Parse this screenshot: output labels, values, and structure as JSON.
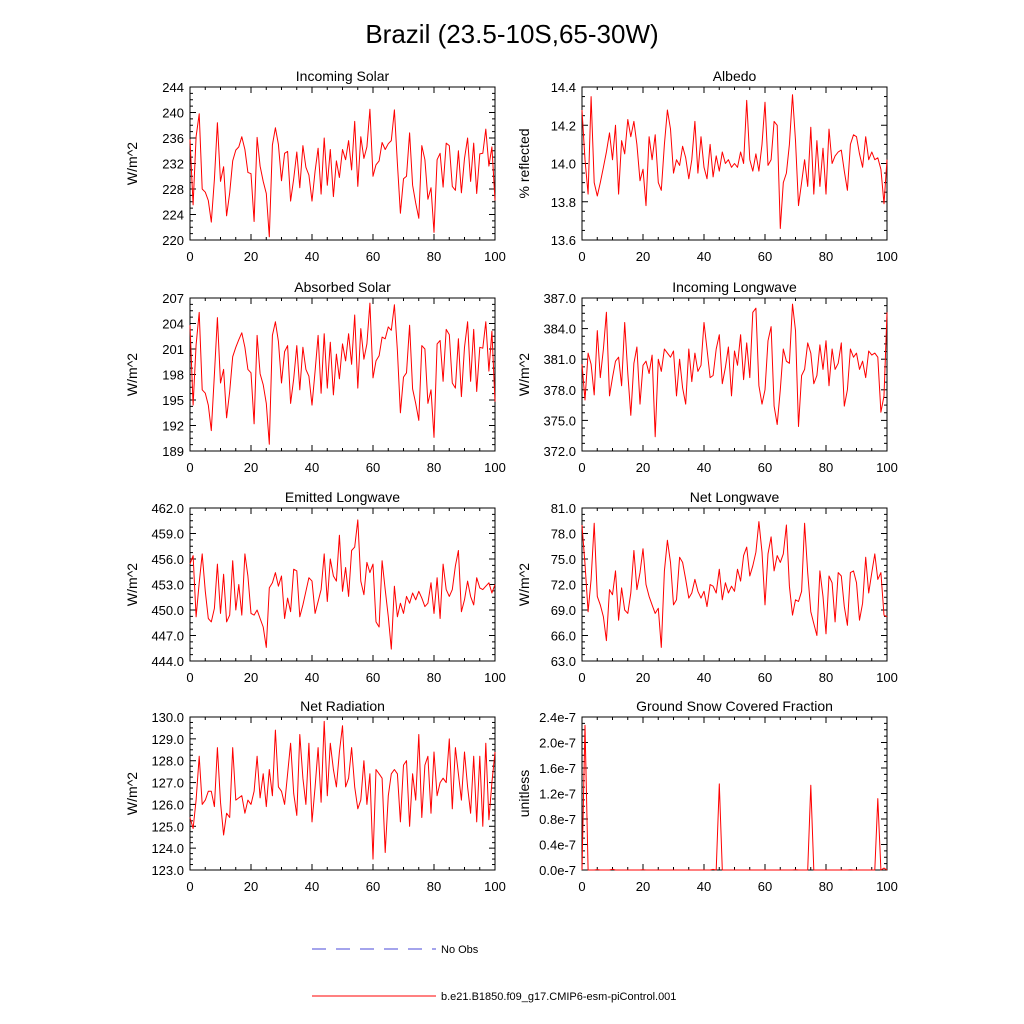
{
  "figure_title": "Brazil (23.5-10S,65-30W)",
  "colors": {
    "model": "#ff0000",
    "obs": "#4a4ad8",
    "axis": "#000000"
  },
  "legend": {
    "obs_label": "No Obs",
    "model_label": "b.e21.B1850.f09_g17.CMIP6-esm-piControl.001"
  },
  "chart_data": [
    {
      "type": "line",
      "title": "Incoming Solar",
      "ylabel": "W/m^2",
      "xlim": [
        0,
        100
      ],
      "ylim": [
        220,
        244
      ],
      "xticks": [
        "0",
        "20",
        "40",
        "60",
        "80",
        "100"
      ],
      "yticks": [
        "220",
        "224",
        "228",
        "232",
        "236",
        "240",
        "244"
      ],
      "grid": false,
      "series": [
        {
          "values": [
            235.8,
            225.5,
            236.2,
            239.8,
            228.0,
            227.5,
            226.2,
            222.8,
            229.5,
            238.4,
            229.2,
            231.5,
            223.8,
            227.4,
            232.4,
            234.1,
            234.6,
            236.2,
            234.2,
            230.6,
            230.4,
            222.9,
            236.1,
            231.6,
            229.2,
            227.3,
            220.5,
            234.9,
            237.6,
            235.0,
            229.3,
            233.6,
            233.9,
            226.1,
            229.6,
            233.8,
            228.2,
            234.8,
            231.4,
            230.2,
            226.1,
            230.8,
            234.4,
            227.2,
            236.0,
            228.6,
            234.2,
            226.8,
            232.4,
            229.8,
            234.2,
            232.6,
            235.6,
            231.0,
            238.6,
            228.4,
            236.2,
            232.8,
            234.6,
            240.5,
            230.0,
            231.8,
            232.4,
            235.3,
            234.2,
            235.1,
            235.6,
            240.4,
            232.0,
            224.2,
            229.6,
            230.0,
            236.8,
            228.6,
            225.8,
            223.4,
            234.8,
            232.6,
            226.4,
            228.2,
            221.2,
            232.6,
            233.6,
            228.3,
            235.2,
            234.8,
            228.4,
            227.8,
            234.0,
            227.4,
            232.8,
            236.0,
            229.2,
            235.2,
            227.3,
            233.5,
            233.6,
            237.4,
            231.6,
            234.6,
            226.2
          ]
        }
      ]
    },
    {
      "type": "line",
      "title": "Albedo",
      "ylabel": "% reflected",
      "xlim": [
        0,
        100
      ],
      "ylim": [
        13.6,
        14.4
      ],
      "xticks": [
        "0",
        "20",
        "40",
        "60",
        "80",
        "100"
      ],
      "yticks": [
        "13.6",
        "13.8",
        "14.0",
        "14.2",
        "14.4"
      ],
      "grid": false,
      "series": [
        {
          "values": [
            14.28,
            14.02,
            13.84,
            14.35,
            13.9,
            13.83,
            13.9,
            13.98,
            14.06,
            14.16,
            14.02,
            14.2,
            13.84,
            14.12,
            14.05,
            14.23,
            14.14,
            14.22,
            14.1,
            13.91,
            13.97,
            13.78,
            14.14,
            14.02,
            14.15,
            13.9,
            13.86,
            14.1,
            14.28,
            14.18,
            13.95,
            14.02,
            13.99,
            14.09,
            14.03,
            13.92,
            14.02,
            14.22,
            13.95,
            14.14,
            13.98,
            13.92,
            14.1,
            13.93,
            14.04,
            13.96,
            14.06,
            14.0,
            14.02,
            13.98,
            14.0,
            13.98,
            14.06,
            14.0,
            14.33,
            14.02,
            13.96,
            14.05,
            13.96,
            14.1,
            14.32,
            13.99,
            14.02,
            14.22,
            14.2,
            13.66,
            13.9,
            13.95,
            14.1,
            14.36,
            14.12,
            13.78,
            13.9,
            14.02,
            13.88,
            14.19,
            13.84,
            14.12,
            13.88,
            14.08,
            13.84,
            14.18,
            14.0,
            14.04,
            14.06,
            14.07,
            13.96,
            13.86,
            14.1,
            14.15,
            14.14,
            14.05,
            13.98,
            14.14,
            14.02,
            14.06,
            14.02,
            14.03,
            13.97,
            13.79,
            14.02
          ]
        }
      ]
    },
    {
      "type": "line",
      "title": "Absorbed Solar",
      "ylabel": "W/m^2",
      "xlim": [
        0,
        100
      ],
      "ylim": [
        189,
        207
      ],
      "xticks": [
        "0",
        "20",
        "40",
        "60",
        "80",
        "100"
      ],
      "yticks": [
        "189",
        "192",
        "195",
        "198",
        "201",
        "204",
        "207"
      ],
      "grid": false,
      "series": [
        {
          "values": [
            203.8,
            194.4,
            201.5,
            205.3,
            196.2,
            195.8,
            194.4,
            191.4,
            198.0,
            204.7,
            197.0,
            198.6,
            192.9,
            196.0,
            200.1,
            201.2,
            202.1,
            202.9,
            201.2,
            198.6,
            198.2,
            192.2,
            202.6,
            198.1,
            196.8,
            194.6,
            189.8,
            202.6,
            204.2,
            201.9,
            197.0,
            200.7,
            201.4,
            194.6,
            197.5,
            201.4,
            196.2,
            201.2,
            198.6,
            197.8,
            194.4,
            198.4,
            202.6,
            195.8,
            202.8,
            196.4,
            201.8,
            195.6,
            200.4,
            197.5,
            201.6,
            199.6,
            202.8,
            199.2,
            205.0,
            196.4,
            203.4,
            199.8,
            201.6,
            206.4,
            197.6,
            199.6,
            200.2,
            202.4,
            202.2,
            203.6,
            203.2,
            206.2,
            200.8,
            193.5,
            197.7,
            198.2,
            203.8,
            196.3,
            194.6,
            192.6,
            201.4,
            201.0,
            194.6,
            196.2,
            190.6,
            201.6,
            202.0,
            197.2,
            203.3,
            202.7,
            197.0,
            196.4,
            202.2,
            195.4,
            201.2,
            204.2,
            197.2,
            203.3,
            196.0,
            201.2,
            201.1,
            204.2,
            198.4,
            203.1,
            194.8
          ]
        }
      ]
    },
    {
      "type": "line",
      "title": "Incoming Longwave",
      "ylabel": "W/m^2",
      "xlim": [
        0,
        100
      ],
      "ylim": [
        372.0,
        387.0
      ],
      "xticks": [
        "0",
        "20",
        "40",
        "60",
        "80",
        "100"
      ],
      "yticks": [
        "372.0",
        "375.0",
        "378.0",
        "381.0",
        "384.0",
        "387.0"
      ],
      "grid": false,
      "series": [
        {
          "values": [
            380.5,
            377.0,
            381.6,
            380.5,
            377.5,
            383.8,
            379.2,
            382.0,
            385.6,
            377.4,
            379.2,
            380.8,
            381.2,
            378.4,
            384.6,
            379.6,
            375.5,
            380.6,
            382.2,
            376.6,
            380.4,
            380.8,
            379.6,
            381.4,
            373.4,
            381.0,
            379.8,
            382.0,
            381.6,
            381.2,
            381.8,
            377.4,
            381.0,
            378.2,
            376.6,
            382.0,
            378.8,
            381.6,
            379.8,
            380.4,
            384.6,
            382.0,
            379.2,
            379.4,
            382.0,
            383.4,
            378.6,
            380.2,
            382.2,
            377.4,
            381.8,
            380.4,
            383.4,
            379.0,
            382.6,
            379.2,
            385.6,
            386.0,
            378.4,
            376.6,
            378.0,
            382.8,
            384.2,
            376.4,
            374.6,
            378.0,
            382.0,
            380.8,
            380.6,
            386.4,
            383.8,
            374.4,
            379.4,
            380.0,
            382.6,
            381.6,
            378.6,
            379.4,
            382.4,
            380.0,
            382.8,
            378.4,
            382.0,
            380.0,
            380.6,
            382.6,
            376.4,
            378.0,
            382.0,
            381.2,
            381.6,
            380.0,
            380.8,
            379.2,
            381.8,
            381.4,
            381.6,
            381.2,
            375.8,
            377.4,
            385.6
          ]
        }
      ]
    },
    {
      "type": "line",
      "title": "Emitted Longwave",
      "ylabel": "W/m^2",
      "xlim": [
        0,
        100
      ],
      "ylim": [
        444.0,
        462.0
      ],
      "xticks": [
        "0",
        "20",
        "40",
        "60",
        "80",
        "100"
      ],
      "yticks": [
        "444.0",
        "447.0",
        "450.0",
        "453.0",
        "456.0",
        "459.0",
        "462.0"
      ],
      "grid": false,
      "series": [
        {
          "values": [
            455.4,
            456.4,
            449.2,
            453.2,
            456.6,
            452.2,
            449.0,
            448.6,
            450.2,
            455.4,
            449.6,
            454.2,
            448.6,
            449.4,
            455.8,
            450.0,
            453.0,
            449.4,
            456.6,
            454.0,
            449.6,
            449.4,
            450.0,
            449.0,
            448.0,
            445.6,
            452.6,
            453.2,
            454.4,
            452.8,
            454.0,
            449.0,
            451.4,
            449.8,
            454.8,
            454.6,
            449.2,
            450.6,
            452.2,
            453.8,
            453.4,
            449.6,
            451.0,
            452.4,
            456.6,
            451.0,
            456.0,
            454.0,
            453.4,
            458.8,
            452.2,
            455.0,
            451.6,
            457.0,
            457.4,
            460.6,
            453.4,
            451.8,
            455.6,
            454.4,
            455.4,
            448.6,
            448.0,
            455.8,
            452.4,
            449.2,
            445.4,
            452.8,
            449.2,
            450.8,
            449.6,
            451.6,
            450.8,
            452.0,
            451.2,
            452.2,
            451.4,
            450.4,
            450.8,
            453.2,
            449.6,
            453.8,
            449.0,
            455.4,
            452.4,
            451.6,
            452.4,
            455.2,
            457.0,
            449.8,
            451.2,
            453.4,
            451.6,
            450.6,
            453.8,
            452.6,
            452.4,
            452.8,
            453.2,
            452.0,
            453.0
          ]
        }
      ]
    },
    {
      "type": "line",
      "title": "Net Longwave",
      "ylabel": "W/m^2",
      "xlim": [
        0,
        100
      ],
      "ylim": [
        63.0,
        81.0
      ],
      "xticks": [
        "0",
        "20",
        "40",
        "60",
        "80",
        "100"
      ],
      "yticks": [
        "63.0",
        "66.0",
        "69.0",
        "72.0",
        "75.0",
        "78.0",
        "81.0"
      ],
      "grid": false,
      "series": [
        {
          "values": [
            79.0,
            74.4,
            68.8,
            72.6,
            79.2,
            70.6,
            69.6,
            68.2,
            65.4,
            71.4,
            70.8,
            73.6,
            67.8,
            71.6,
            69.0,
            68.6,
            71.0,
            76.0,
            71.4,
            73.4,
            76.2,
            72.0,
            70.6,
            69.6,
            68.6,
            69.2,
            64.6,
            73.6,
            77.2,
            74.6,
            69.6,
            70.2,
            75.2,
            74.6,
            72.6,
            70.4,
            71.0,
            72.6,
            71.2,
            70.4,
            71.2,
            69.4,
            72.0,
            71.8,
            71.0,
            73.8,
            70.2,
            72.2,
            71.0,
            71.8,
            71.2,
            73.8,
            72.4,
            75.4,
            76.4,
            73.0,
            74.2,
            75.8,
            79.4,
            75.8,
            69.6,
            75.6,
            77.6,
            73.6,
            75.4,
            74.6,
            75.6,
            79.0,
            71.8,
            68.4,
            70.2,
            70.0,
            71.2,
            79.2,
            73.4,
            68.8,
            67.4,
            66.0,
            73.6,
            70.6,
            66.2,
            73.0,
            72.2,
            67.6,
            73.4,
            73.0,
            69.4,
            67.2,
            73.4,
            73.6,
            72.2,
            67.8,
            69.8,
            75.2,
            71.0,
            73.4,
            75.6,
            72.6,
            73.4,
            68.4,
            68.2
          ]
        }
      ]
    },
    {
      "type": "line",
      "title": "Net Radiation",
      "ylabel": "W/m^2",
      "xlim": [
        0,
        100
      ],
      "ylim": [
        123.0,
        130.0
      ],
      "xticks": [
        "0",
        "20",
        "40",
        "60",
        "80",
        "100"
      ],
      "yticks": [
        "123.0",
        "124.0",
        "125.0",
        "126.0",
        "127.0",
        "128.0",
        "129.0",
        "130.0"
      ],
      "grid": false,
      "series": [
        {
          "values": [
            125.4,
            124.9,
            126.2,
            128.2,
            126.0,
            126.2,
            126.6,
            126.6,
            125.9,
            128.6,
            126.1,
            124.6,
            125.6,
            125.4,
            128.6,
            126.2,
            126.3,
            126.4,
            125.6,
            126.2,
            126.0,
            126.6,
            128.2,
            126.3,
            127.4,
            125.9,
            127.6,
            126.4,
            129.4,
            126.8,
            126.6,
            126.0,
            127.4,
            128.8,
            126.5,
            125.5,
            129.2,
            127.2,
            126.0,
            128.8,
            125.2,
            126.8,
            128.6,
            126.1,
            129.8,
            126.4,
            128.8,
            127.6,
            126.8,
            128.4,
            129.6,
            126.8,
            127.2,
            128.6,
            126.8,
            125.8,
            126.2,
            128.0,
            126.0,
            127.4,
            123.5,
            127.6,
            127.4,
            127.2,
            123.8,
            126.4,
            127.4,
            127.6,
            127.4,
            125.2,
            127.8,
            128.0,
            125.0,
            127.4,
            126.2,
            129.2,
            125.4,
            127.8,
            128.2,
            125.6,
            128.4,
            126.4,
            127.0,
            127.2,
            127.0,
            129.0,
            125.8,
            128.6,
            127.4,
            126.2,
            128.4,
            126.8,
            125.6,
            128.2,
            125.2,
            128.2,
            125.0,
            128.8,
            125.3,
            127.0,
            128.4
          ]
        }
      ]
    },
    {
      "type": "line",
      "title": "Ground Snow Covered Fraction",
      "ylabel": "unitless",
      "xlim": [
        0,
        100
      ],
      "ylim": [
        0,
        2.4e-07
      ],
      "xticks": [
        "0",
        "20",
        "40",
        "60",
        "80",
        "100"
      ],
      "yticks": [
        "0.0e-7",
        "0.4e-7",
        "0.8e-7",
        "1.2e-7",
        "1.6e-7",
        "2.0e-7",
        "2.4e-7"
      ],
      "grid": false,
      "series": [
        {
          "values": [
            0,
            2.27e-07,
            0,
            0,
            0,
            6e-10,
            0,
            0,
            0,
            0,
            1.2e-09,
            0,
            0,
            0,
            0,
            0,
            0,
            0,
            0,
            0,
            5e-10,
            0,
            0,
            0,
            0,
            0,
            0,
            0,
            0,
            0,
            0,
            0,
            0,
            0,
            0,
            0,
            0,
            0,
            0,
            0,
            0,
            0,
            0,
            1e-09,
            0,
            1.35e-07,
            0,
            0,
            0,
            0,
            0,
            0,
            0,
            0,
            0,
            0,
            0,
            0,
            0,
            0,
            0,
            0,
            0,
            0,
            0,
            0,
            0,
            0,
            0,
            0,
            3e-10,
            0,
            0,
            0,
            0,
            1.33e-07,
            0,
            0,
            0,
            0,
            0,
            0,
            0,
            0,
            0,
            0,
            0,
            0,
            5e-10,
            0,
            0,
            0,
            0,
            0,
            0,
            0,
            0,
            1.12e-07,
            0,
            3e-09,
            0
          ]
        }
      ]
    }
  ]
}
